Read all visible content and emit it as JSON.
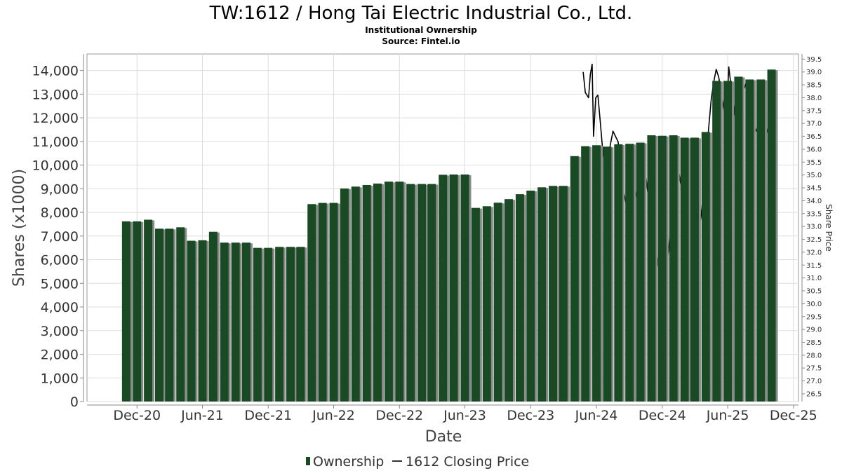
{
  "chart_data": {
    "type": "bar",
    "title": "TW:1612 / Hong Tai Electric Industrial Co., Ltd.",
    "subtitle": "Institutional Ownership",
    "source": "Source: Fintel.io",
    "xlabel": "Date",
    "ylabel": "Shares (x1000)",
    "y2label": "Share Price",
    "ylim": [
      0,
      14700
    ],
    "y2lim": [
      26.2,
      39.7
    ],
    "grid": true,
    "legend_position": "bottom",
    "x_range": [
      "2020-07-15",
      "2025-12-15"
    ],
    "x_ticks": [
      {
        "label": "Dec-20",
        "date": "2020-12-01"
      },
      {
        "label": "Jun-21",
        "date": "2021-06-01"
      },
      {
        "label": "Dec-21",
        "date": "2021-12-01"
      },
      {
        "label": "Jun-22",
        "date": "2022-06-01"
      },
      {
        "label": "Dec-22",
        "date": "2022-12-01"
      },
      {
        "label": "Jun-23",
        "date": "2023-06-01"
      },
      {
        "label": "Dec-23",
        "date": "2023-12-01"
      },
      {
        "label": "Jun-24",
        "date": "2024-06-01"
      },
      {
        "label": "Dec-24",
        "date": "2024-12-01"
      },
      {
        "label": "Jun-25",
        "date": "2025-06-01"
      },
      {
        "label": "Dec-25",
        "date": "2025-12-01"
      }
    ],
    "y_ticks": [
      0,
      1000,
      2000,
      3000,
      4000,
      5000,
      6000,
      7000,
      8000,
      9000,
      10000,
      11000,
      12000,
      13000,
      14000
    ],
    "y_tick_labels": [
      "0",
      "1,000",
      "2,000",
      "3,000",
      "4,000",
      "5,000",
      "6,000",
      "7,000",
      "8,000",
      "9,000",
      "10,000",
      "11,000",
      "12,000",
      "13,000",
      "14,000"
    ],
    "y2_ticks": [
      26.5,
      27.0,
      27.5,
      28.0,
      28.5,
      29.0,
      29.5,
      30.0,
      30.5,
      31.0,
      31.5,
      32.0,
      32.5,
      33.0,
      33.5,
      34.0,
      34.5,
      35.0,
      35.5,
      36.0,
      36.5,
      37.0,
      37.5,
      38.0,
      38.5,
      39.0,
      39.5
    ],
    "y2_tick_labels": [
      "26.5",
      "27.0",
      "27.5",
      "28.0",
      "28.5",
      "29.0",
      "29.5",
      "30.0",
      "30.5",
      "31.0",
      "31.5",
      "32.0",
      "32.5",
      "33.0",
      "33.5",
      "34.0",
      "34.5",
      "35.0",
      "35.5",
      "36.0",
      "36.5",
      "37.0",
      "37.5",
      "38.0",
      "38.5",
      "39.0",
      "39.5"
    ],
    "series": [
      {
        "name": "Ownership",
        "type": "bar",
        "color": "#1a4a24",
        "dates": [
          "2020-11-01",
          "2020-12-01",
          "2021-01-01",
          "2021-02-01",
          "2021-03-01",
          "2021-04-01",
          "2021-05-01",
          "2021-06-01",
          "2021-07-01",
          "2021-08-01",
          "2021-09-01",
          "2021-10-01",
          "2021-11-01",
          "2021-12-01",
          "2022-01-01",
          "2022-02-01",
          "2022-03-01",
          "2022-04-01",
          "2022-05-01",
          "2022-06-01",
          "2022-07-01",
          "2022-08-01",
          "2022-09-01",
          "2022-10-01",
          "2022-11-01",
          "2022-12-01",
          "2023-01-01",
          "2023-02-01",
          "2023-03-01",
          "2023-04-01",
          "2023-05-01",
          "2023-06-01",
          "2023-07-01",
          "2023-08-01",
          "2023-09-01",
          "2023-10-01",
          "2023-11-01",
          "2023-12-01",
          "2024-01-01",
          "2024-02-01",
          "2024-03-01",
          "2024-04-01",
          "2024-05-01",
          "2024-06-01",
          "2024-07-01",
          "2024-08-01",
          "2024-09-01",
          "2024-10-01",
          "2024-11-01",
          "2024-12-01",
          "2025-01-01",
          "2025-02-01",
          "2025-03-01",
          "2025-04-01",
          "2025-05-01",
          "2025-06-01",
          "2025-07-01",
          "2025-08-01",
          "2025-09-01",
          "2025-10-01"
        ],
        "values": [
          7620,
          7620,
          7690,
          7310,
          7310,
          7370,
          6800,
          6820,
          7180,
          6720,
          6720,
          6720,
          6500,
          6500,
          6540,
          6540,
          6540,
          8350,
          8400,
          8400,
          9010,
          9090,
          9160,
          9220,
          9300,
          9300,
          9200,
          9200,
          9200,
          9590,
          9600,
          9600,
          8190,
          8260,
          8410,
          8560,
          8770,
          8920,
          9060,
          9120,
          9120,
          10380,
          10800,
          10840,
          10780,
          10880,
          10900,
          10950,
          11260,
          11240,
          11260,
          11160,
          11160,
          11400,
          13560,
          13560,
          13740,
          13620,
          13620,
          14040
        ]
      },
      {
        "name": "1612 Closing Price",
        "type": "line",
        "axis": "right",
        "color": "#000000",
        "points": [
          [
            "2024-04-25",
            39.0
          ],
          [
            "2024-05-01",
            38.2
          ],
          [
            "2024-05-10",
            38.0
          ],
          [
            "2024-05-15",
            38.9
          ],
          [
            "2024-05-20",
            39.3
          ],
          [
            "2024-05-24",
            36.5
          ],
          [
            "2024-05-30",
            38.0
          ],
          [
            "2024-06-05",
            38.1
          ],
          [
            "2024-06-12",
            37.0
          ],
          [
            "2024-06-18",
            36.0
          ],
          [
            "2024-06-25",
            35.2
          ],
          [
            "2024-07-03",
            35.6
          ],
          [
            "2024-07-10",
            36.2
          ],
          [
            "2024-07-17",
            36.7
          ],
          [
            "2024-07-24",
            36.5
          ],
          [
            "2024-07-31",
            36.3
          ],
          [
            "2024-08-07",
            35.5
          ],
          [
            "2024-08-14",
            34.5
          ],
          [
            "2024-08-21",
            34.0
          ],
          [
            "2024-08-28",
            33.5
          ],
          [
            "2024-09-04",
            33.4
          ],
          [
            "2024-09-11",
            33.8
          ],
          [
            "2024-09-18",
            34.2
          ],
          [
            "2024-09-25",
            34.6
          ],
          [
            "2024-10-02",
            35.0
          ],
          [
            "2024-10-09",
            35.4
          ],
          [
            "2024-10-16",
            35.0
          ],
          [
            "2024-10-23",
            34.2
          ],
          [
            "2024-10-30",
            33.6
          ],
          [
            "2024-11-06",
            33.0
          ],
          [
            "2024-11-13",
            32.3
          ],
          [
            "2024-11-20",
            31.5
          ],
          [
            "2024-11-27",
            31.0
          ],
          [
            "2024-12-04",
            31.1
          ],
          [
            "2024-12-11",
            31.3
          ],
          [
            "2024-12-18",
            32.0
          ],
          [
            "2024-12-25",
            33.0
          ],
          [
            "2025-01-01",
            34.0
          ],
          [
            "2025-01-08",
            34.8
          ],
          [
            "2025-01-15",
            35.2
          ],
          [
            "2025-01-22",
            34.6
          ],
          [
            "2025-01-29",
            33.5
          ],
          [
            "2025-02-05",
            32.3
          ],
          [
            "2025-02-12",
            31.2
          ],
          [
            "2025-02-19",
            30.8
          ],
          [
            "2025-02-26",
            31.3
          ],
          [
            "2025-03-05",
            32.1
          ],
          [
            "2025-03-12",
            32.8
          ],
          [
            "2025-03-19",
            33.4
          ],
          [
            "2025-03-26",
            34.4
          ],
          [
            "2025-04-02",
            35.6
          ],
          [
            "2025-04-09",
            36.8
          ],
          [
            "2025-04-16",
            37.9
          ],
          [
            "2025-04-23",
            38.6
          ],
          [
            "2025-04-30",
            39.1
          ],
          [
            "2025-05-07",
            38.8
          ],
          [
            "2025-05-14",
            38.2
          ],
          [
            "2025-05-21",
            37.6
          ],
          [
            "2025-05-28",
            36.9
          ],
          [
            "2025-06-04",
            39.2
          ],
          [
            "2025-06-11",
            38.4
          ],
          [
            "2025-06-18",
            37.6
          ],
          [
            "2025-06-25",
            36.8
          ],
          [
            "2025-07-02",
            37.3
          ],
          [
            "2025-07-09",
            37.8
          ],
          [
            "2025-07-16",
            38.3
          ],
          [
            "2025-07-23",
            38.6
          ],
          [
            "2025-07-30",
            38.2
          ],
          [
            "2025-08-06",
            37.5
          ],
          [
            "2025-08-13",
            37.0
          ],
          [
            "2025-08-20",
            36.7
          ],
          [
            "2025-08-27",
            36.9
          ],
          [
            "2025-09-03",
            37.2
          ],
          [
            "2025-09-10",
            37.0
          ],
          [
            "2025-09-17",
            36.8
          ],
          [
            "2025-09-24",
            36.5
          ]
        ]
      }
    ]
  }
}
